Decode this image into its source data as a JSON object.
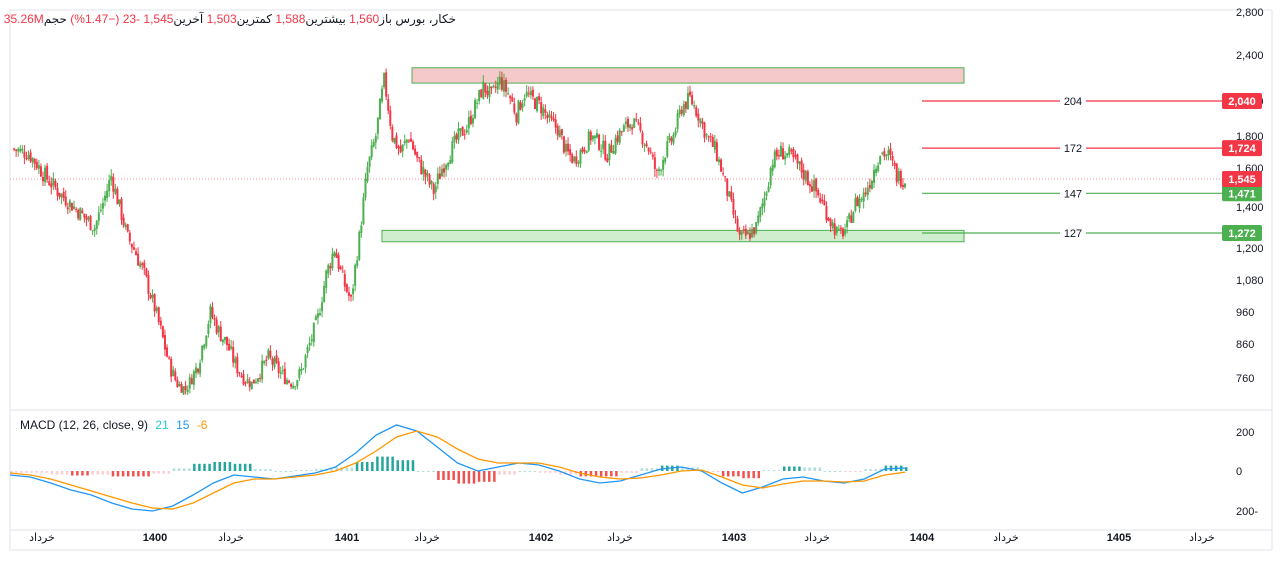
{
  "header": {
    "symbol": "خکار، بورس",
    "open_label": "باز",
    "open_value": "1,560",
    "high_label": "بیشترین",
    "high_value": "1,588",
    "low_label": "کمترین",
    "low_value": "1,503",
    "last_label": "آخرین",
    "last_value": "1,545",
    "change_value": "-23",
    "change_pct": "(−1.47%)",
    "volume_label": "حجم",
    "volume_value": "35.26M"
  },
  "macd_legend": {
    "title": "MACD (12, 26, close, 9)",
    "hist_value": "21",
    "macd_value": "15",
    "signal_value": "-6",
    "macd_color": "#2196f3",
    "signal_color": "#ff9800",
    "hist_color": "#26c6da"
  },
  "levels": [
    {
      "label": "204",
      "badge": "2,040",
      "color": "#f23645"
    },
    {
      "label": "172",
      "badge": "1,724",
      "color": "#f23645"
    },
    {
      "label": "147",
      "badge": "1,471",
      "color": "#4caf50"
    },
    {
      "label": "127",
      "badge": "1,272",
      "color": "#4caf50"
    }
  ],
  "last_price_badge": "1,545",
  "colors": {
    "up": "#4caf50",
    "down": "#f23645",
    "zone_red": "#f5c9c9",
    "zone_green": "#cfeecd"
  },
  "chart_data": [
    {
      "type": "candlestick",
      "price_axis_ticks": [
        "2,800",
        "2,400",
        "2,000",
        "1,800",
        "1,600",
        "1,400",
        "1,200",
        "1,080",
        "960",
        "860",
        "760"
      ],
      "x_axis_ticks": [
        "خرداد",
        "1400",
        "خرداد",
        "1401",
        "خرداد",
        "1402",
        "خرداد",
        "1403",
        "خرداد",
        "1404",
        "خرداد",
        "1405",
        "خرداد"
      ],
      "resistance_zone": [
        2180,
        2300
      ],
      "support_zone": [
        1230,
        1285
      ],
      "close_path": [
        [
          0,
          1720
        ],
        [
          8,
          1690
        ],
        [
          16,
          1560
        ],
        [
          24,
          1460
        ],
        [
          32,
          1380
        ],
        [
          40,
          1300
        ],
        [
          44,
          1420
        ],
        [
          48,
          1560
        ],
        [
          52,
          1400
        ],
        [
          56,
          1250
        ],
        [
          60,
          1180
        ],
        [
          64,
          1100
        ],
        [
          68,
          1000
        ],
        [
          72,
          900
        ],
        [
          76,
          800
        ],
        [
          80,
          740
        ],
        [
          84,
          720
        ],
        [
          90,
          800
        ],
        [
          96,
          960
        ],
        [
          100,
          900
        ],
        [
          104,
          860
        ],
        [
          108,
          800
        ],
        [
          112,
          760
        ],
        [
          116,
          740
        ],
        [
          120,
          780
        ],
        [
          124,
          820
        ],
        [
          128,
          790
        ],
        [
          132,
          760
        ],
        [
          136,
          740
        ],
        [
          140,
          780
        ],
        [
          144,
          860
        ],
        [
          148,
          940
        ],
        [
          152,
          1100
        ],
        [
          156,
          1200
        ],
        [
          160,
          1080
        ],
        [
          164,
          1000
        ],
        [
          168,
          1250
        ],
        [
          172,
          1600
        ],
        [
          176,
          1800
        ],
        [
          180,
          2200
        ],
        [
          184,
          1800
        ],
        [
          188,
          1700
        ],
        [
          192,
          1800
        ],
        [
          196,
          1650
        ],
        [
          200,
          1560
        ],
        [
          204,
          1480
        ],
        [
          208,
          1600
        ],
        [
          212,
          1700
        ],
        [
          216,
          1800
        ],
        [
          220,
          1860
        ],
        [
          224,
          2000
        ],
        [
          228,
          2150
        ],
        [
          232,
          2080
        ],
        [
          236,
          2200
        ],
        [
          240,
          2100
        ],
        [
          244,
          1950
        ],
        [
          248,
          2100
        ],
        [
          252,
          2050
        ],
        [
          256,
          2000
        ],
        [
          260,
          1900
        ],
        [
          264,
          1850
        ],
        [
          268,
          1700
        ],
        [
          272,
          1650
        ],
        [
          276,
          1720
        ],
        [
          280,
          1800
        ],
        [
          284,
          1760
        ],
        [
          288,
          1680
        ],
        [
          292,
          1780
        ],
        [
          296,
          1850
        ],
        [
          300,
          1900
        ],
        [
          304,
          1820
        ],
        [
          308,
          1720
        ],
        [
          312,
          1560
        ],
        [
          316,
          1700
        ],
        [
          320,
          1800
        ],
        [
          324,
          2000
        ],
        [
          328,
          2060
        ],
        [
          332,
          1950
        ],
        [
          336,
          1800
        ],
        [
          340,
          1720
        ],
        [
          344,
          1560
        ],
        [
          348,
          1400
        ],
        [
          352,
          1250
        ],
        [
          356,
          1260
        ],
        [
          360,
          1300
        ],
        [
          364,
          1450
        ],
        [
          368,
          1650
        ],
        [
          372,
          1700
        ],
        [
          376,
          1680
        ],
        [
          380,
          1620
        ],
        [
          384,
          1560
        ],
        [
          388,
          1500
        ],
        [
          392,
          1420
        ],
        [
          396,
          1330
        ],
        [
          400,
          1260
        ],
        [
          404,
          1300
        ],
        [
          408,
          1420
        ],
        [
          412,
          1460
        ],
        [
          416,
          1560
        ],
        [
          420,
          1700
        ],
        [
          424,
          1680
        ],
        [
          428,
          1560
        ],
        [
          432,
          1545
        ]
      ]
    },
    {
      "type": "line",
      "title": "MACD (12, 26, close, 9)",
      "y_axis_ticks": [
        "200",
        "0",
        "200-"
      ],
      "series": [
        {
          "name": "MACD",
          "color": "#2196f3",
          "values": [
            -20,
            -30,
            -60,
            -95,
            -120,
            -160,
            -190,
            -200,
            -175,
            -120,
            -60,
            -20,
            -30,
            -40,
            -25,
            -10,
            20,
            90,
            180,
            230,
            200,
            120,
            40,
            0,
            20,
            40,
            30,
            0,
            -40,
            -60,
            -50,
            -20,
            10,
            20,
            0,
            -60,
            -110,
            -80,
            -40,
            -30,
            -50,
            -60,
            -40,
            10,
            15
          ]
        },
        {
          "name": "Signal",
          "color": "#ff9800",
          "values": [
            -10,
            -20,
            -40,
            -70,
            -100,
            -130,
            -160,
            -185,
            -190,
            -160,
            -110,
            -60,
            -40,
            -40,
            -30,
            -20,
            0,
            40,
            100,
            170,
            200,
            170,
            110,
            60,
            40,
            40,
            40,
            20,
            -10,
            -30,
            -40,
            -35,
            -20,
            0,
            5,
            -30,
            -70,
            -85,
            -65,
            -50,
            -50,
            -55,
            -50,
            -20,
            -6
          ]
        }
      ]
    }
  ]
}
